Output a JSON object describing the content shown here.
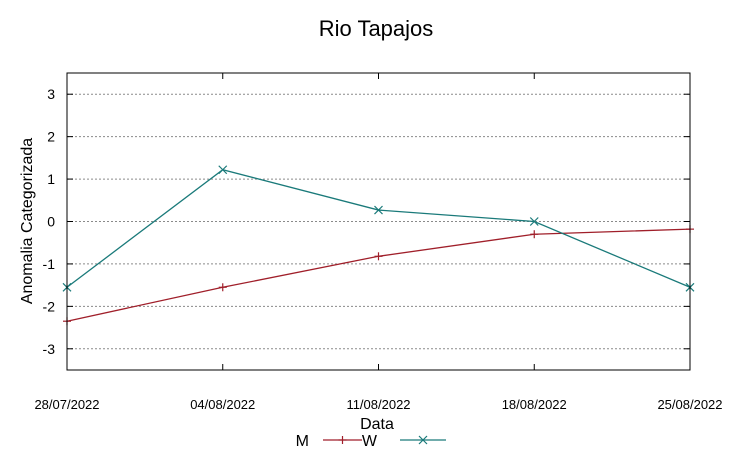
{
  "chart_data": {
    "type": "line",
    "title": "Rio Tapajos",
    "xlabel": "Data",
    "ylabel": "Anomalia Categorizada",
    "categories": [
      "28/07/2022",
      "04/08/2022",
      "11/08/2022",
      "18/08/2022",
      "25/08/2022"
    ],
    "ylim": [
      -3.5,
      3.5
    ],
    "yticks": [
      3,
      2,
      1,
      0,
      -1,
      -2,
      -3
    ],
    "ytick_labels": [
      "3",
      "2",
      "1",
      "0",
      "-1",
      "-2",
      "-3"
    ],
    "grid": true,
    "legend_position": "bottom-center",
    "series": [
      {
        "name": "M",
        "values": [
          -2.35,
          -1.55,
          -0.82,
          -0.3,
          -0.18
        ],
        "color": "#a01f2a",
        "marker": "plus"
      },
      {
        "name": "W",
        "values": [
          -1.55,
          1.22,
          0.27,
          0.0,
          -1.55
        ],
        "color": "#1a7a7a",
        "marker": "cross"
      }
    ]
  }
}
